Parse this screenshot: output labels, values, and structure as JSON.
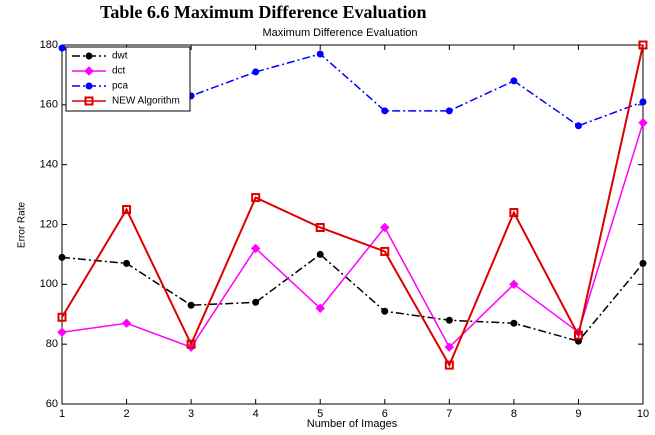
{
  "chart_data": {
    "type": "line",
    "caption": "Table 6.6 Maximum Difference Evaluation",
    "title": "Maximum Difference Evaluation",
    "x_label": "Number of Images",
    "y_label": "Error Rate",
    "x": [
      1,
      2,
      3,
      4,
      5,
      6,
      7,
      8,
      9,
      10
    ],
    "series": [
      {
        "name": "dwt",
        "color": "#000000",
        "linestyle": "dashdot",
        "marker": "circle",
        "values": [
          109,
          107,
          93,
          94,
          110,
          91,
          88,
          87,
          81,
          107
        ]
      },
      {
        "name": "dct",
        "color": "#ff00ff",
        "linestyle": "solid",
        "marker": "diamond",
        "values": [
          84,
          87,
          79,
          112,
          92,
          119,
          79,
          100,
          84,
          154
        ]
      },
      {
        "name": "pca",
        "color": "#0000ff",
        "linestyle": "dashdot",
        "marker": "circle",
        "values": [
          179,
          168,
          163,
          171,
          177,
          158,
          158,
          168,
          153,
          161
        ]
      },
      {
        "name": "NEW Algorithm",
        "color": "#dd0000",
        "linestyle": "solid",
        "marker": "square",
        "values": [
          89,
          125,
          80,
          129,
          119,
          111,
          73,
          124,
          83,
          180
        ]
      }
    ],
    "xlim": [
      1,
      10
    ],
    "xticks": [
      1,
      2,
      3,
      4,
      5,
      6,
      7,
      8,
      9,
      10
    ],
    "ylim": [
      60,
      180
    ],
    "yticks": [
      60,
      80,
      100,
      120,
      140,
      160,
      180
    ],
    "grid": false,
    "legend": "upper left"
  }
}
